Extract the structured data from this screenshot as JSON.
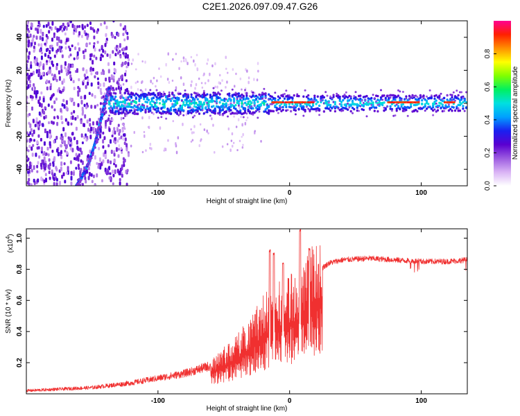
{
  "title": "C2E1.2026.097.09.47.G26",
  "colors": {
    "snr_line": "#f03030",
    "background": "#ffffff",
    "axes": "#000000"
  },
  "chart_data": [
    {
      "type": "heatmap",
      "name": "spectrogram",
      "xlabel": "Height of straight line (km)",
      "ylabel": "Frequency (Hz)",
      "xlim": [
        -200,
        135
      ],
      "ylim": [
        -50,
        50
      ],
      "xticks": [
        -100,
        0,
        100
      ],
      "xtick_labels": [
        "-100",
        "0",
        "100"
      ],
      "yticks": [
        -40,
        -20,
        0,
        20,
        40
      ],
      "ytick_labels": [
        "-40",
        "-20",
        "0",
        "20",
        "40"
      ],
      "colorbar": {
        "label": "Normalized spectral amplitude",
        "range": [
          0,
          1
        ],
        "ticks": [
          0,
          0.2,
          0.4,
          0.6,
          0.8
        ],
        "tick_labels": [
          "0.0",
          "0.2",
          "0.4",
          "0.6",
          "0.8"
        ],
        "colors": [
          "#ffffff",
          "#d9b3f5",
          "#9c5be0",
          "#5a00d0",
          "#1a20f0",
          "#00a0ff",
          "#00e0e0",
          "#00f060",
          "#80ff00",
          "#ffff00",
          "#ff9000",
          "#ff2000",
          "#ff0090"
        ]
      },
      "features": {
        "noise_region_x": [
          -200,
          -122
        ],
        "band_center_hz": 0,
        "band_halfwidth_hz": 5,
        "band_x_range": [
          -162,
          135
        ],
        "ramp_points": [
          [
            -162,
            -50
          ],
          [
            -158,
            -45
          ],
          [
            -152,
            -35
          ],
          [
            -147,
            -22
          ],
          [
            -144,
            -12
          ],
          [
            -141,
            -2
          ],
          [
            -138,
            7
          ],
          [
            -137,
            9
          ]
        ],
        "strong_segments_km": [
          [
            -13,
            -5
          ],
          [
            -3,
            2
          ],
          [
            4,
            12
          ],
          [
            14,
            18
          ],
          [
            75,
            98
          ],
          [
            118,
            125
          ]
        ]
      }
    },
    {
      "type": "line",
      "name": "snr",
      "xlabel": "Height of straight line (km)",
      "ylabel": "SNR (10 * v/v)",
      "y_multiplier_label": "(x10",
      "y_multiplier_exp": "4",
      "y_multiplier_close": ")",
      "xlim": [
        -200,
        135
      ],
      "ylim": [
        0,
        1.06
      ],
      "xticks": [
        -100,
        0,
        100
      ],
      "xtick_labels": [
        "-100",
        "0",
        "100"
      ],
      "yticks": [
        0.2,
        0.4,
        0.6,
        0.8,
        1.0
      ],
      "ytick_labels": [
        "0.2",
        "0.4",
        "0.6",
        "0.8",
        "1.0"
      ],
      "series": [
        {
          "name": "SNR",
          "envelope": [
            [
              -200,
              0.02
            ],
            [
              -150,
              0.04
            ],
            [
              -120,
              0.07
            ],
            [
              -100,
              0.1
            ],
            [
              -80,
              0.13
            ],
            [
              -60,
              0.18
            ],
            [
              -40,
              0.3
            ],
            [
              -20,
              0.5
            ],
            [
              -10,
              0.58
            ],
            [
              0,
              0.62
            ],
            [
              10,
              0.66
            ],
            [
              20,
              0.78
            ],
            [
              30,
              0.84
            ],
            [
              40,
              0.86
            ],
            [
              60,
              0.87
            ],
            [
              80,
              0.86
            ],
            [
              100,
              0.85
            ],
            [
              120,
              0.85
            ],
            [
              135,
              0.86
            ]
          ],
          "peaks": [
            [
              -15,
              0.93
            ],
            [
              -12,
              0.91
            ],
            [
              -5,
              0.85
            ],
            [
              8,
              1.06
            ],
            [
              15,
              0.94
            ]
          ]
        }
      ]
    }
  ]
}
